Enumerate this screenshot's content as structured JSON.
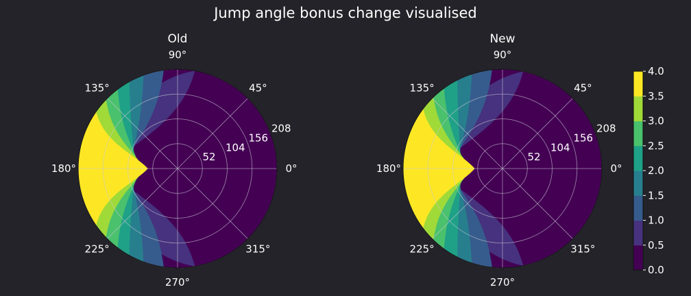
{
  "title": "Jump angle bonus change visualised",
  "colors": {
    "background": "#232329",
    "text": "#ffffff",
    "grid": "#c8c8d2",
    "levels": [
      "#440154",
      "#46327e",
      "#365c8d",
      "#277f8e",
      "#1fa187",
      "#4ac16d",
      "#a0da39",
      "#fde725"
    ]
  },
  "chart_data": [
    {
      "type": "polar-contour",
      "title": "Old",
      "theta_ticks": [
        "0°",
        "45°",
        "90°",
        "135°",
        "180°",
        "225°",
        "270°",
        "315°"
      ],
      "r_ticks": [
        52,
        104,
        156,
        208
      ],
      "r_max": 208,
      "level_boundaries": [
        0,
        0.5,
        1.0,
        1.5,
        2.0,
        2.5,
        3.0,
        3.5,
        4.0
      ],
      "description": "bonus rises toward 180° and with distance",
      "contour_crossings": [
        {
          "level": 0.5,
          "r_at_180": 148,
          "r_edge_theta_deg": 80
        },
        {
          "level": 1.0,
          "r_at_180": 118,
          "r_edge_theta_deg": 98
        },
        {
          "level": 1.5,
          "r_at_180": 100,
          "r_edge_theta_deg": 110
        },
        {
          "level": 2.0,
          "r_at_180": 88,
          "r_edge_theta_deg": 119
        },
        {
          "level": 2.5,
          "r_at_180": 78,
          "r_edge_theta_deg": 127
        },
        {
          "level": 3.0,
          "r_at_180": 70,
          "r_edge_theta_deg": 136
        },
        {
          "level": 3.5,
          "r_at_180": 62,
          "r_edge_theta_deg": 145
        }
      ]
    },
    {
      "type": "polar-contour",
      "title": "New",
      "theta_ticks": [
        "0°",
        "45°",
        "90°",
        "135°",
        "180°",
        "225°",
        "270°",
        "315°"
      ],
      "r_ticks": [
        52,
        104,
        156,
        208
      ],
      "r_max": 208,
      "level_boundaries": [
        0,
        0.5,
        1.0,
        1.5,
        2.0,
        2.5,
        3.0,
        3.5,
        4.0
      ],
      "description": "bonus rises toward 180° and with distance",
      "contour_crossings": [
        {
          "level": 0.5,
          "r_at_180": 140,
          "r_edge_theta_deg": 78
        },
        {
          "level": 1.0,
          "r_at_180": 114,
          "r_edge_theta_deg": 96
        },
        {
          "level": 1.5,
          "r_at_180": 97,
          "r_edge_theta_deg": 108
        },
        {
          "level": 2.0,
          "r_at_180": 86,
          "r_edge_theta_deg": 117
        },
        {
          "level": 2.5,
          "r_at_180": 76,
          "r_edge_theta_deg": 126
        },
        {
          "level": 3.0,
          "r_at_180": 67,
          "r_edge_theta_deg": 134
        },
        {
          "level": 3.5,
          "r_at_180": 58,
          "r_edge_theta_deg": 143
        }
      ]
    }
  ],
  "colorbar": {
    "ticks": [
      "0.0",
      "0.5",
      "1.0",
      "1.5",
      "2.0",
      "2.5",
      "3.0",
      "3.5",
      "4.0"
    ],
    "min": 0,
    "max": 4.0
  }
}
